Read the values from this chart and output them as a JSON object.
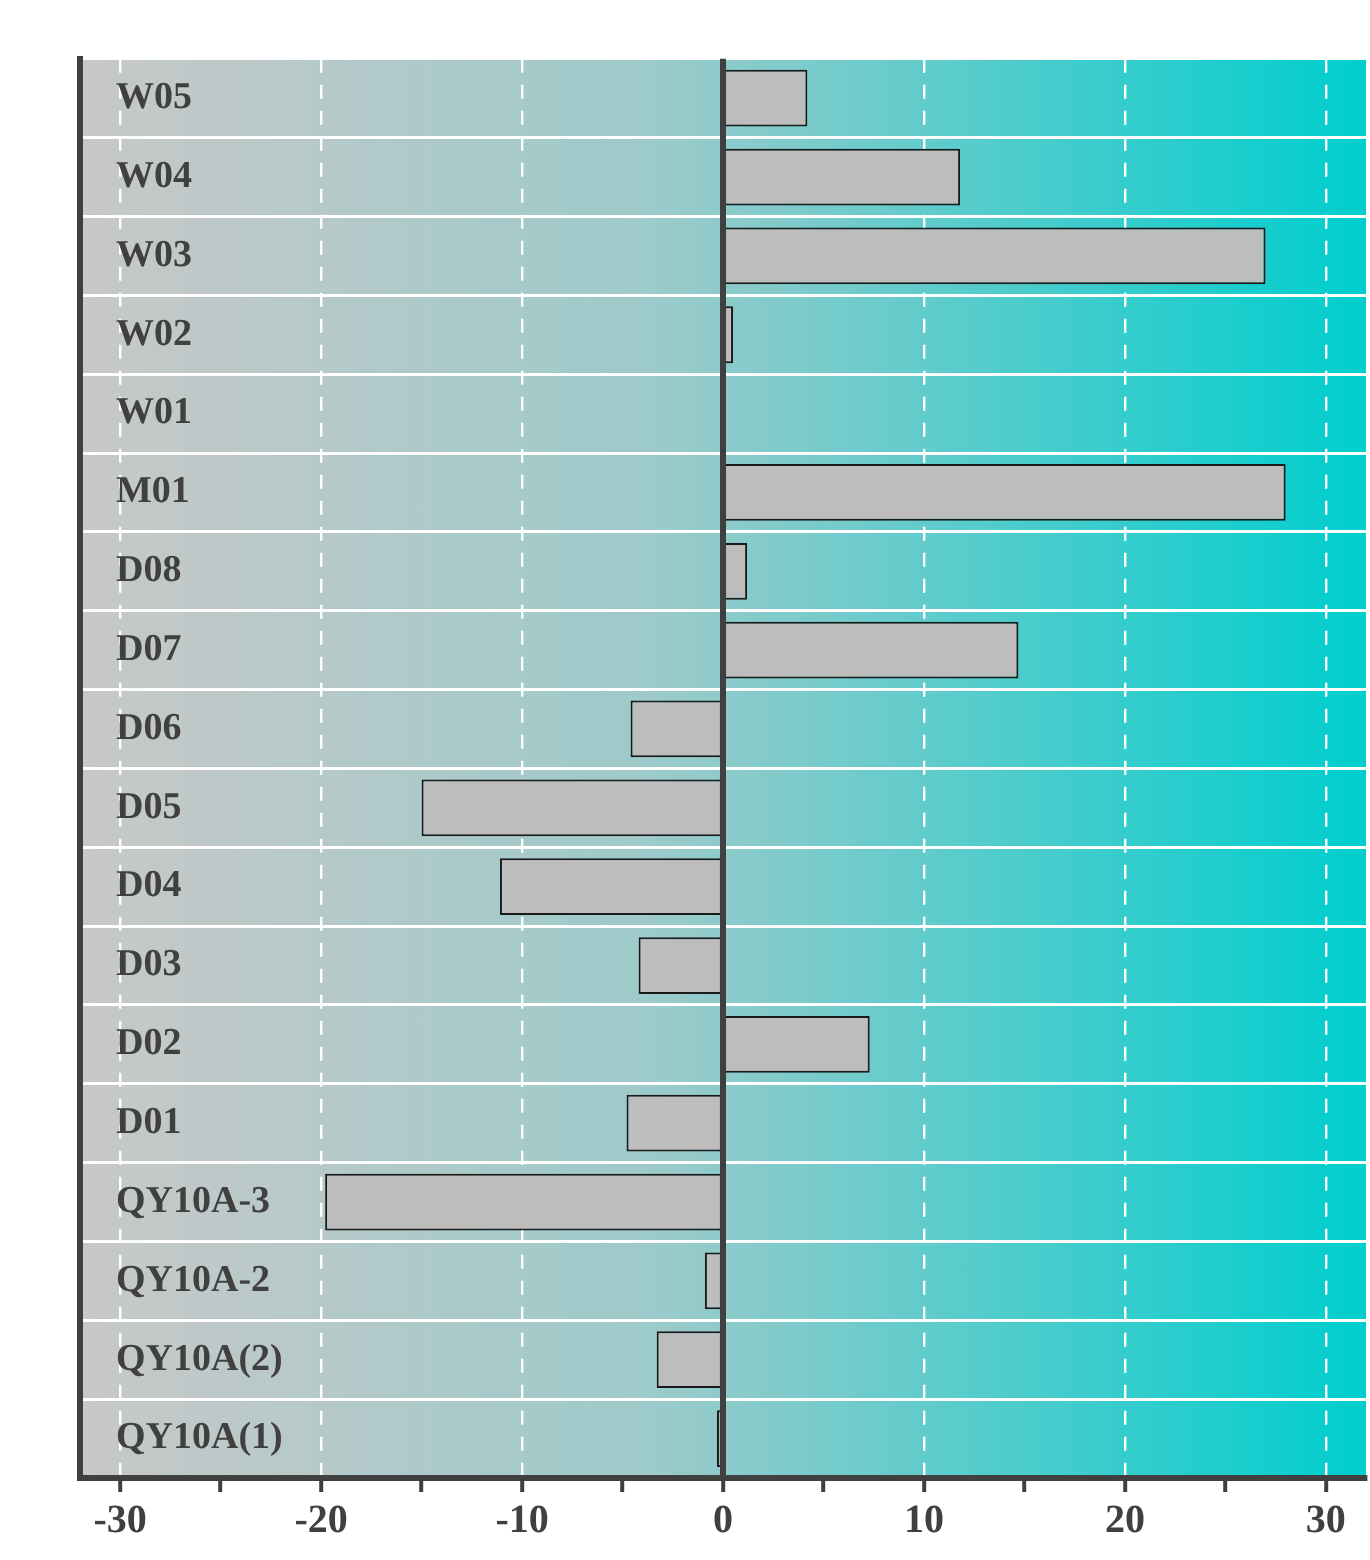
{
  "chart_data": {
    "type": "bar",
    "orientation": "horizontal",
    "categories": [
      "W05",
      "W04",
      "W03",
      "W02",
      "W01",
      "M01",
      "D08",
      "D07",
      "D06",
      "D05",
      "D04",
      "D03",
      "D02",
      "D01",
      "QY10A-3",
      "QY10A-2",
      "QY10A(2)",
      "QY10A(1)"
    ],
    "values": [
      4.2,
      11.8,
      27.0,
      0.5,
      0,
      28.0,
      1.2,
      14.7,
      -4.6,
      -15.0,
      -11.1,
      -4.2,
      7.3,
      -4.8,
      -19.8,
      -0.9,
      -3.3,
      -0.3
    ],
    "color": "#bdbdbd",
    "xlim": [
      -32,
      32
    ],
    "xticks": [
      -30,
      {
        "value": -25,
        "label": null
      },
      -20,
      {
        "value": -15,
        "label": null
      },
      -10,
      {
        "value": -5,
        "label": null
      },
      0,
      {
        "value": 5,
        "label": null
      },
      10,
      {
        "value": 15,
        "label": null
      },
      20,
      {
        "value": 25,
        "label": null
      },
      30
    ],
    "grid": true
  }
}
